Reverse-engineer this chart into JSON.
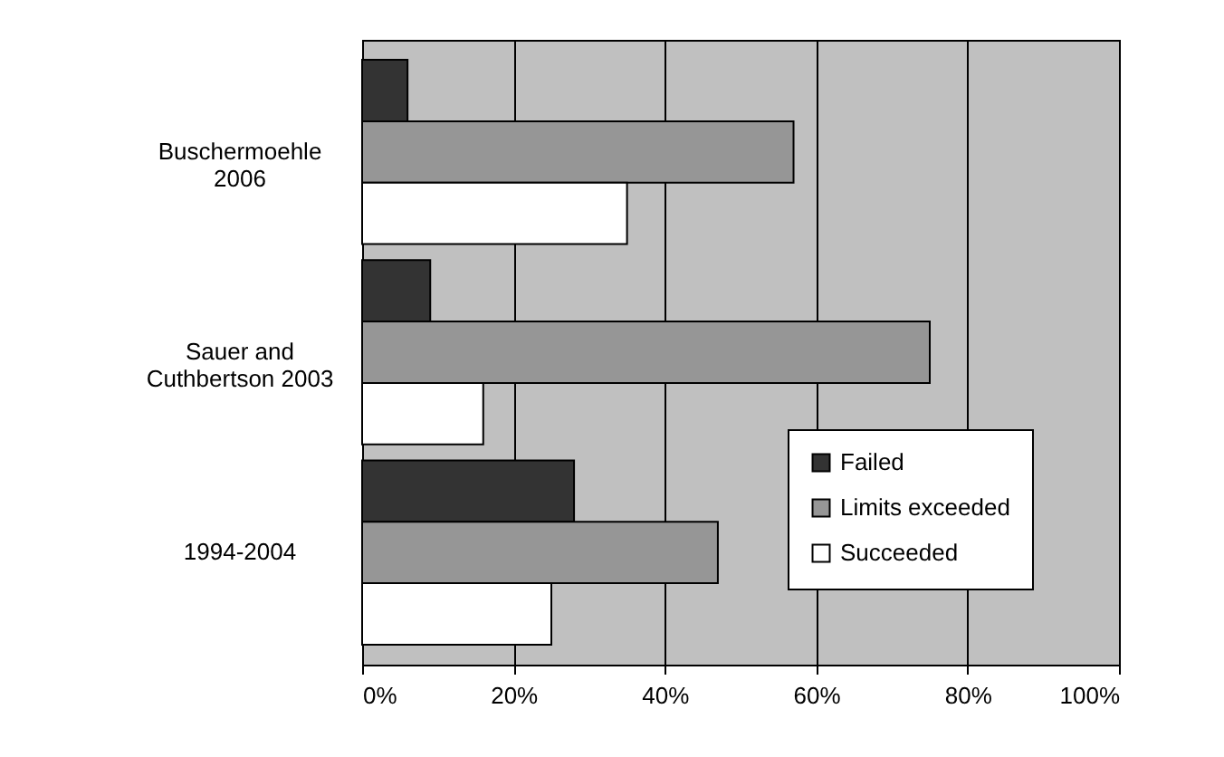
{
  "chart_data": {
    "type": "bar",
    "orientation": "horizontal",
    "categories": [
      "Buschermoehle\n2006",
      "Sauer and\nCuthbertson 2003",
      "1994-2004"
    ],
    "series": [
      {
        "name": "Failed",
        "color": "#333333",
        "values": [
          6,
          9,
          28
        ]
      },
      {
        "name": "Limits exceeded",
        "color": "#969696",
        "values": [
          57,
          75,
          47
        ]
      },
      {
        "name": "Succeeded",
        "color": "#ffffff",
        "values": [
          35,
          16,
          25
        ]
      }
    ],
    "xlim": [
      0,
      100
    ],
    "xticks": [
      {
        "value": 0,
        "label": "0%"
      },
      {
        "value": 20,
        "label": "20%"
      },
      {
        "value": 40,
        "label": "40%"
      },
      {
        "value": 60,
        "label": "60%"
      },
      {
        "value": 80,
        "label": "80%"
      },
      {
        "value": 100,
        "label": "100%"
      }
    ],
    "grid": "x",
    "legend": "bottom right"
  }
}
